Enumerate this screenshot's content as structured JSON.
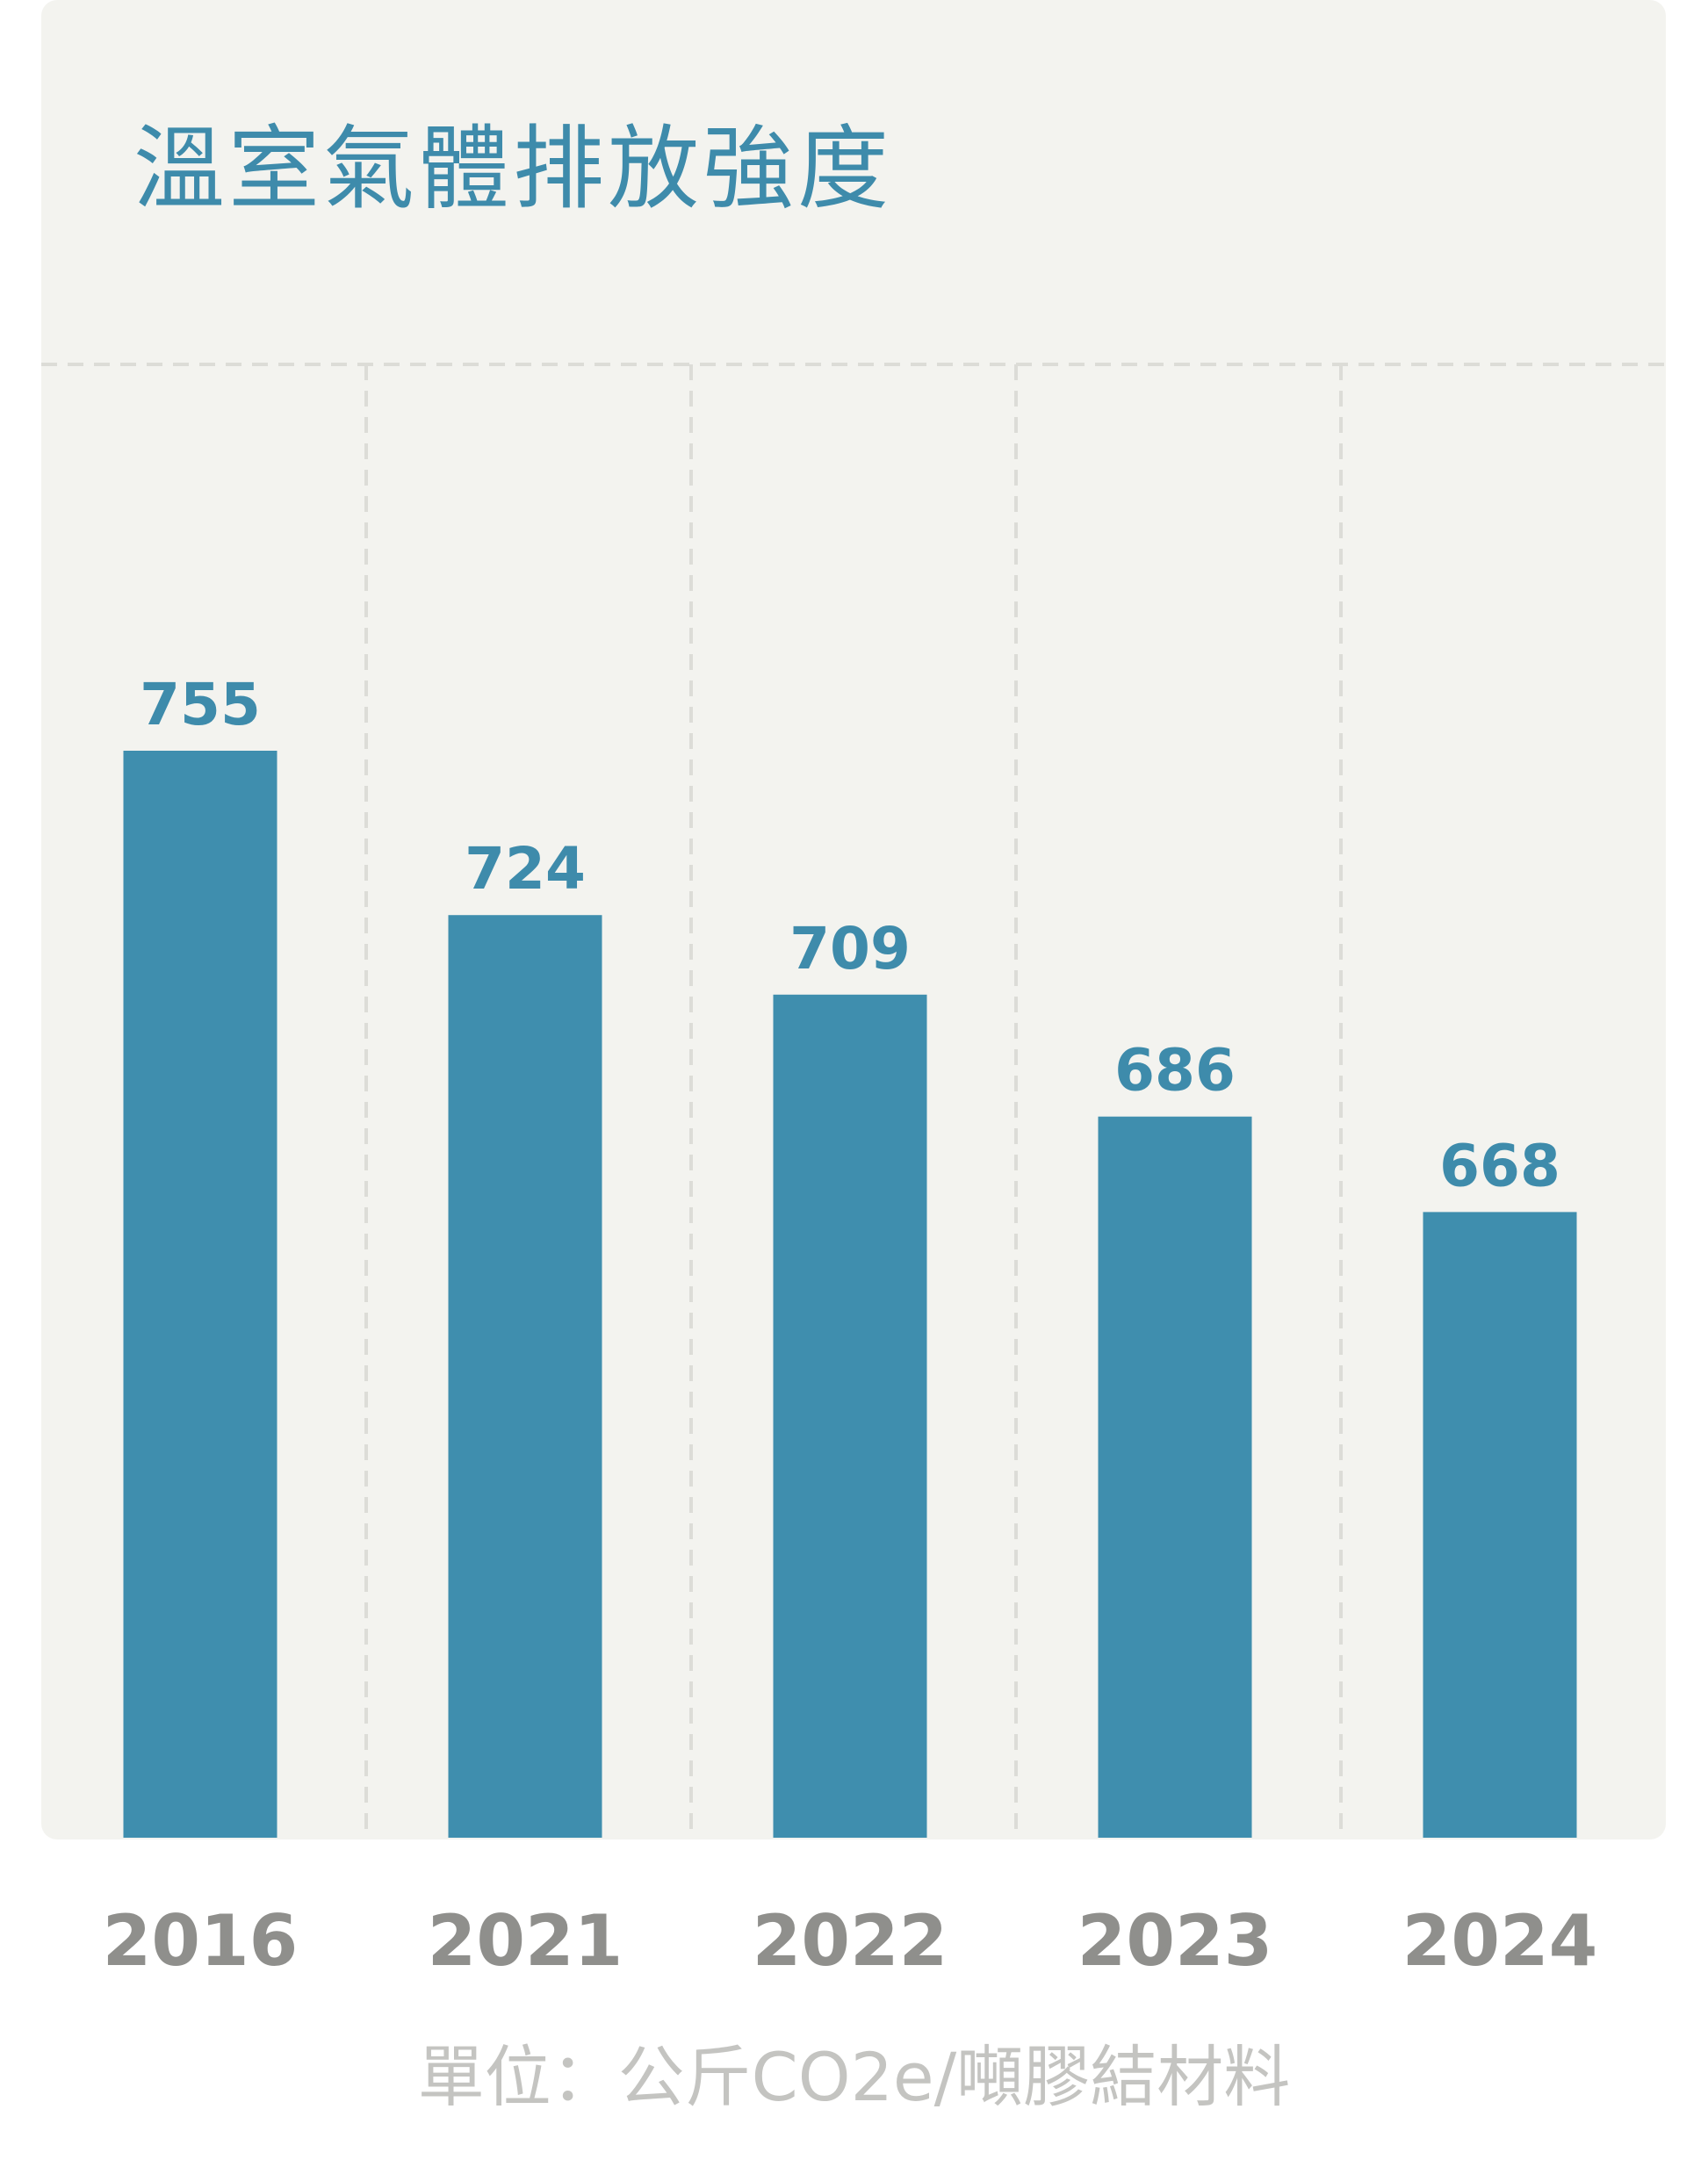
{
  "chart_data": {
    "type": "bar",
    "title": "溫室氣體排放強度",
    "categories": [
      "2016",
      "2021",
      "2022",
      "2023",
      "2024"
    ],
    "values": [
      755,
      724,
      709,
      686,
      668
    ],
    "value_labels": [
      "755",
      "724",
      "709",
      "686",
      "668"
    ],
    "unit_note": "單位：公斤CO2e/噸膠結材料",
    "ylim": [
      550,
      800
    ],
    "grid": "vertical dashed separators between categories and dashed top line",
    "legend": "none"
  },
  "colors": {
    "bar": "#3f8eae",
    "title": "#3e8bab",
    "value_label": "#3e8bab",
    "tick_label": "#8f8f8c",
    "unit_note": "#c4c4c1",
    "panel_background": "#f3f3ef",
    "gridline": "#dcdcd7"
  }
}
